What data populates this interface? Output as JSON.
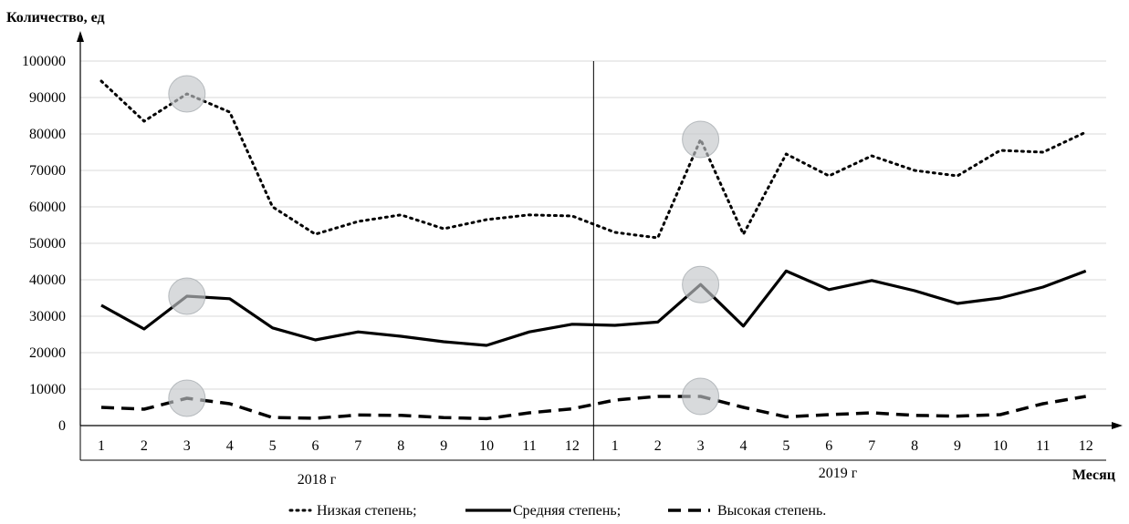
{
  "chart_data": {
    "type": "line",
    "ylabel": "Количество, ед",
    "xlabel": "Месяц",
    "ylim": [
      0,
      100000
    ],
    "yticks": [
      "100000",
      "90000",
      "80000",
      "70000",
      "60000",
      "50000",
      "40000",
      "30000",
      "20000",
      "10000",
      "0"
    ],
    "grid": true,
    "legend_position": "bottom",
    "year_groups": [
      {
        "label": "2018 г",
        "months": [
          "1",
          "2",
          "3",
          "4",
          "5",
          "6",
          "7",
          "8",
          "9",
          "10",
          "11",
          "12"
        ]
      },
      {
        "label": "2019 г",
        "months": [
          "1",
          "2",
          "3",
          "4",
          "5",
          "6",
          "7",
          "8",
          "9",
          "10",
          "11",
          "12"
        ]
      }
    ],
    "series": [
      {
        "name": "Низкая степень;",
        "style": "dotted",
        "values": [
          94500,
          83500,
          91000,
          86000,
          60000,
          52500,
          56000,
          57800,
          54000,
          56500,
          57800,
          57500,
          53000,
          51500,
          78500,
          52500,
          74500,
          68500,
          74000,
          70000,
          68500,
          75500,
          75000,
          80500
        ]
      },
      {
        "name": "Средняя степень;",
        "style": "solid",
        "values": [
          33000,
          26500,
          35500,
          34800,
          26800,
          23500,
          25700,
          24500,
          23000,
          22000,
          25700,
          27800,
          27500,
          28400,
          38700,
          27300,
          42400,
          37300,
          39800,
          37000,
          33500,
          35000,
          38000,
          42400
        ]
      },
      {
        "name": "Высокая степень.",
        "style": "dashed",
        "values": [
          5000,
          4500,
          7500,
          6000,
          2200,
          2000,
          2900,
          2800,
          2200,
          1900,
          3500,
          4600,
          7000,
          8000,
          8000,
          5000,
          2400,
          3000,
          3500,
          2800,
          2600,
          3000,
          6000,
          8000
        ]
      }
    ],
    "highlight_points": [
      {
        "series": 0,
        "index": 2
      },
      {
        "series": 1,
        "index": 2
      },
      {
        "series": 2,
        "index": 2
      },
      {
        "series": 0,
        "index": 14
      },
      {
        "series": 1,
        "index": 14
      },
      {
        "series": 2,
        "index": 14
      }
    ]
  }
}
